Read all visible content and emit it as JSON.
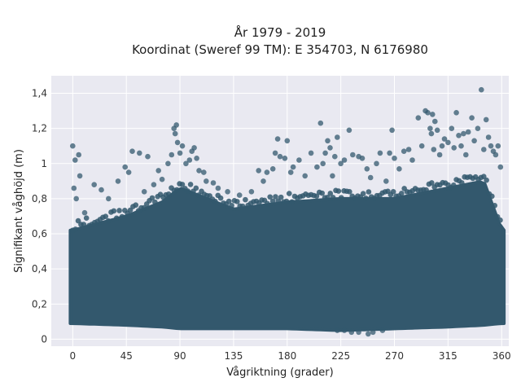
{
  "chart_data": {
    "type": "scatter",
    "title": "År 1979 - 2019",
    "subtitle": "Koordinat (Sweref 99 TM): E 354703, N 6176980",
    "xlabel": "Vågriktning (grader)",
    "ylabel": "Signifikant våghöjd (m)",
    "xlim": [
      -18,
      366
    ],
    "ylim": [
      -0.04,
      1.5
    ],
    "xticks": [
      0,
      45,
      90,
      135,
      180,
      225,
      270,
      315,
      360
    ],
    "xtick_labels": [
      "0",
      "45",
      "90",
      "135",
      "180",
      "225",
      "270",
      "315",
      "360"
    ],
    "yticks": [
      0,
      0.2,
      0.4,
      0.6,
      0.8,
      1.0,
      1.2,
      1.4
    ],
    "ytick_labels": [
      "0",
      "0,2",
      "0,4",
      "0,6",
      "0,8",
      "1",
      "1,2",
      "1,4"
    ],
    "grid": true,
    "colors": {
      "plot_bg": "#e9e9f1",
      "grid": "#ffffff",
      "marker": "#33586d"
    },
    "density_band": {
      "x_range": [
        -2,
        362
      ],
      "envelope": [
        {
          "x": 0,
          "y_low": 0.09,
          "y_high": 0.62
        },
        {
          "x": 45,
          "y_low": 0.08,
          "y_high": 0.7
        },
        {
          "x": 75,
          "y_low": 0.07,
          "y_high": 0.78
        },
        {
          "x": 90,
          "y_low": 0.06,
          "y_high": 0.86
        },
        {
          "x": 120,
          "y_low": 0.06,
          "y_high": 0.78
        },
        {
          "x": 135,
          "y_low": 0.06,
          "y_high": 0.74
        },
        {
          "x": 180,
          "y_low": 0.06,
          "y_high": 0.78
        },
        {
          "x": 225,
          "y_low": 0.05,
          "y_high": 0.8
        },
        {
          "x": 270,
          "y_low": 0.06,
          "y_high": 0.8
        },
        {
          "x": 315,
          "y_low": 0.07,
          "y_high": 0.86
        },
        {
          "x": 345,
          "y_low": 0.08,
          "y_high": 0.9
        },
        {
          "x": 360,
          "y_low": 0.09,
          "y_high": 0.62
        }
      ]
    },
    "points": [
      {
        "x": 0,
        "y": 1.1
      },
      {
        "x": 5,
        "y": 1.05
      },
      {
        "x": 2,
        "y": 1.02
      },
      {
        "x": 6,
        "y": 0.93
      },
      {
        "x": 1,
        "y": 0.86
      },
      {
        "x": 3,
        "y": 0.8
      },
      {
        "x": 10,
        "y": 0.72
      },
      {
        "x": 18,
        "y": 0.88
      },
      {
        "x": 24,
        "y": 0.85
      },
      {
        "x": 30,
        "y": 0.8
      },
      {
        "x": 38,
        "y": 0.9
      },
      {
        "x": 44,
        "y": 0.98
      },
      {
        "x": 47,
        "y": 0.95
      },
      {
        "x": 50,
        "y": 1.07
      },
      {
        "x": 56,
        "y": 1.06
      },
      {
        "x": 60,
        "y": 0.84
      },
      {
        "x": 63,
        "y": 1.04
      },
      {
        "x": 68,
        "y": 0.88
      },
      {
        "x": 72,
        "y": 0.96
      },
      {
        "x": 75,
        "y": 0.91
      },
      {
        "x": 80,
        "y": 1.0
      },
      {
        "x": 83,
        "y": 1.05
      },
      {
        "x": 85,
        "y": 1.2
      },
      {
        "x": 86,
        "y": 1.17
      },
      {
        "x": 87,
        "y": 1.22
      },
      {
        "x": 88,
        "y": 1.12
      },
      {
        "x": 90,
        "y": 1.06
      },
      {
        "x": 92,
        "y": 1.1
      },
      {
        "x": 95,
        "y": 1.0
      },
      {
        "x": 98,
        "y": 1.02
      },
      {
        "x": 100,
        "y": 1.07
      },
      {
        "x": 102,
        "y": 1.09
      },
      {
        "x": 104,
        "y": 1.03
      },
      {
        "x": 106,
        "y": 0.96
      },
      {
        "x": 110,
        "y": 0.95
      },
      {
        "x": 112,
        "y": 0.9
      },
      {
        "x": 118,
        "y": 0.89
      },
      {
        "x": 122,
        "y": 0.86
      },
      {
        "x": 130,
        "y": 0.84
      },
      {
        "x": 140,
        "y": 0.82
      },
      {
        "x": 150,
        "y": 0.84
      },
      {
        "x": 156,
        "y": 0.96
      },
      {
        "x": 160,
        "y": 0.9
      },
      {
        "x": 163,
        "y": 0.95
      },
      {
        "x": 168,
        "y": 0.97
      },
      {
        "x": 170,
        "y": 1.06
      },
      {
        "x": 172,
        "y": 1.14
      },
      {
        "x": 174,
        "y": 1.04
      },
      {
        "x": 178,
        "y": 1.03
      },
      {
        "x": 180,
        "y": 1.13
      },
      {
        "x": 183,
        "y": 0.95
      },
      {
        "x": 185,
        "y": 0.98
      },
      {
        "x": 190,
        "y": 1.02
      },
      {
        "x": 195,
        "y": 0.93
      },
      {
        "x": 200,
        "y": 1.06
      },
      {
        "x": 205,
        "y": 0.98
      },
      {
        "x": 208,
        "y": 1.23
      },
      {
        "x": 210,
        "y": 1.0
      },
      {
        "x": 212,
        "y": 1.06
      },
      {
        "x": 214,
        "y": 1.13
      },
      {
        "x": 216,
        "y": 1.09
      },
      {
        "x": 218,
        "y": 0.93
      },
      {
        "x": 220,
        "y": 1.04
      },
      {
        "x": 222,
        "y": 1.15
      },
      {
        "x": 225,
        "y": 1.0
      },
      {
        "x": 228,
        "y": 1.02
      },
      {
        "x": 232,
        "y": 1.19
      },
      {
        "x": 235,
        "y": 1.05
      },
      {
        "x": 240,
        "y": 1.04
      },
      {
        "x": 243,
        "y": 1.03
      },
      {
        "x": 247,
        "y": 0.97
      },
      {
        "x": 250,
        "y": 0.92
      },
      {
        "x": 255,
        "y": 1.0
      },
      {
        "x": 258,
        "y": 1.06
      },
      {
        "x": 263,
        "y": 0.9
      },
      {
        "x": 266,
        "y": 1.06
      },
      {
        "x": 268,
        "y": 1.19
      },
      {
        "x": 270,
        "y": 1.03
      },
      {
        "x": 274,
        "y": 0.97
      },
      {
        "x": 278,
        "y": 1.07
      },
      {
        "x": 282,
        "y": 1.08
      },
      {
        "x": 285,
        "y": 1.02
      },
      {
        "x": 290,
        "y": 1.26
      },
      {
        "x": 293,
        "y": 1.1
      },
      {
        "x": 296,
        "y": 1.3
      },
      {
        "x": 298,
        "y": 1.29
      },
      {
        "x": 300,
        "y": 1.2
      },
      {
        "x": 301,
        "y": 1.17
      },
      {
        "x": 302,
        "y": 1.28
      },
      {
        "x": 303,
        "y": 1.08
      },
      {
        "x": 304,
        "y": 1.24
      },
      {
        "x": 306,
        "y": 1.19
      },
      {
        "x": 308,
        "y": 1.05
      },
      {
        "x": 310,
        "y": 1.1
      },
      {
        "x": 312,
        "y": 1.14
      },
      {
        "x": 315,
        "y": 1.12
      },
      {
        "x": 318,
        "y": 1.2
      },
      {
        "x": 320,
        "y": 1.09
      },
      {
        "x": 322,
        "y": 1.29
      },
      {
        "x": 324,
        "y": 1.16
      },
      {
        "x": 326,
        "y": 1.1
      },
      {
        "x": 328,
        "y": 1.17
      },
      {
        "x": 330,
        "y": 1.05
      },
      {
        "x": 332,
        "y": 1.18
      },
      {
        "x": 335,
        "y": 1.26
      },
      {
        "x": 337,
        "y": 1.13
      },
      {
        "x": 340,
        "y": 1.2
      },
      {
        "x": 343,
        "y": 1.42
      },
      {
        "x": 345,
        "y": 1.08
      },
      {
        "x": 347,
        "y": 1.25
      },
      {
        "x": 349,
        "y": 1.15
      },
      {
        "x": 351,
        "y": 1.1
      },
      {
        "x": 353,
        "y": 1.07
      },
      {
        "x": 355,
        "y": 1.05
      },
      {
        "x": 357,
        "y": 1.1
      },
      {
        "x": 359,
        "y": 0.98
      },
      {
        "x": 234,
        "y": 0.04
      },
      {
        "x": 240,
        "y": 0.04
      },
      {
        "x": 248,
        "y": 0.03
      },
      {
        "x": 252,
        "y": 0.04
      },
      {
        "x": 260,
        "y": 0.05
      },
      {
        "x": 228,
        "y": 0.05
      },
      {
        "x": 222,
        "y": 0.05
      }
    ]
  }
}
